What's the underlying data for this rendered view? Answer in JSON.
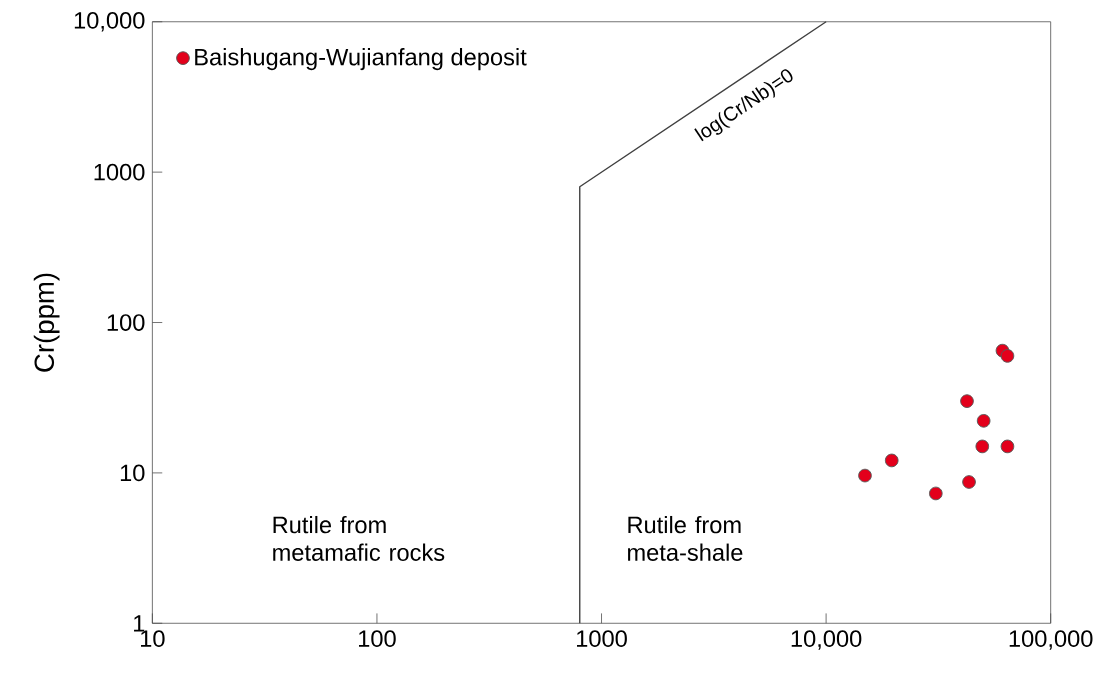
{
  "chart_data": {
    "type": "scatter",
    "ylabel": "Cr(ppm)",
    "log": "xy",
    "xlim": [
      10,
      100000
    ],
    "ylim": [
      1,
      10000
    ],
    "xticks": [
      10,
      100,
      1000,
      {
        "value": 10000,
        "label": "10,000"
      },
      {
        "value": 100000,
        "label": "100,000"
      }
    ],
    "yticks": [
      1,
      10,
      100,
      1000,
      {
        "value": 10000,
        "label": "10,000"
      }
    ],
    "grid": false,
    "legend": "top left",
    "series": [
      {
        "name": "Baishugang-Wujianfang deposit",
        "marker": "circle",
        "color": "#e3001b",
        "x": [
          14900,
          19600,
          30800,
          42400,
          43300,
          50300,
          49600,
          64200,
          61000,
          64200
        ],
        "values": [
          9.6,
          12.1,
          7.3,
          30,
          8.7,
          22.2,
          15,
          15,
          65,
          60
        ]
      },
      {
        "type": "line",
        "color": "#404040",
        "x": [
          800,
          800,
          10000
        ],
        "values": [
          1,
          800,
          10000
        ]
      }
    ],
    "annotations": [
      "log(Cr/Nb)=0",
      "Rutile from metamafic rocks",
      "Rutile from meta-shale"
    ]
  }
}
